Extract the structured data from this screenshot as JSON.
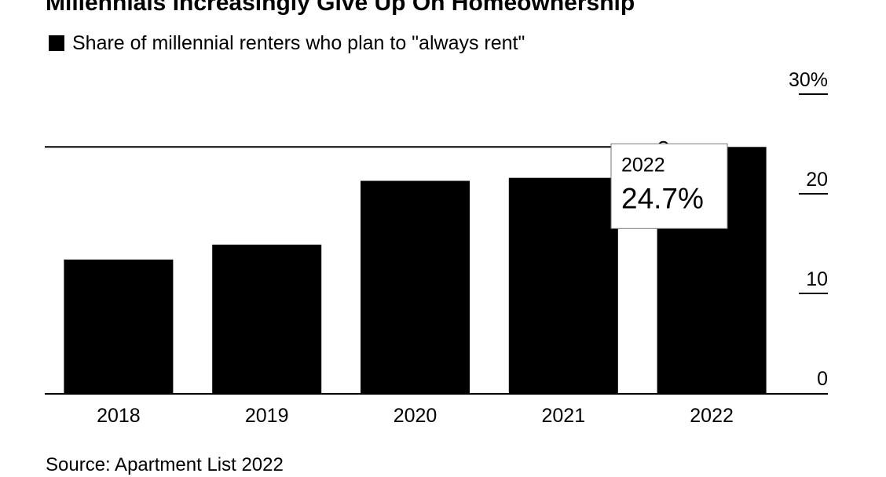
{
  "colors": {
    "bar": "#000000",
    "background": "#ffffff",
    "text": "#000000"
  },
  "header": {
    "title": "Millennials Increasingly Give Up On Homeownership",
    "legend_label": "Share of millennial renters who plan to \"always rent\""
  },
  "footer": {
    "source": "Source: Apartment List 2022"
  },
  "tooltip": {
    "year": "2022",
    "value": "24.7%"
  },
  "chart_data": {
    "type": "bar",
    "title": "Millennials Increasingly Give Up On Homeownership",
    "xlabel": "",
    "ylabel": "Share of millennial renters who plan to \"always rent\"",
    "categories": [
      "2018",
      "2019",
      "2020",
      "2021",
      "2022"
    ],
    "values": [
      13.4,
      14.9,
      21.3,
      21.6,
      24.7
    ],
    "ylim": [
      0,
      30
    ],
    "yticks": [
      0,
      10,
      20,
      30
    ],
    "ytick_labels": [
      "0",
      "10",
      "20",
      "30%"
    ],
    "reference_line": 24.7,
    "legend": "top-left",
    "grid": false
  }
}
